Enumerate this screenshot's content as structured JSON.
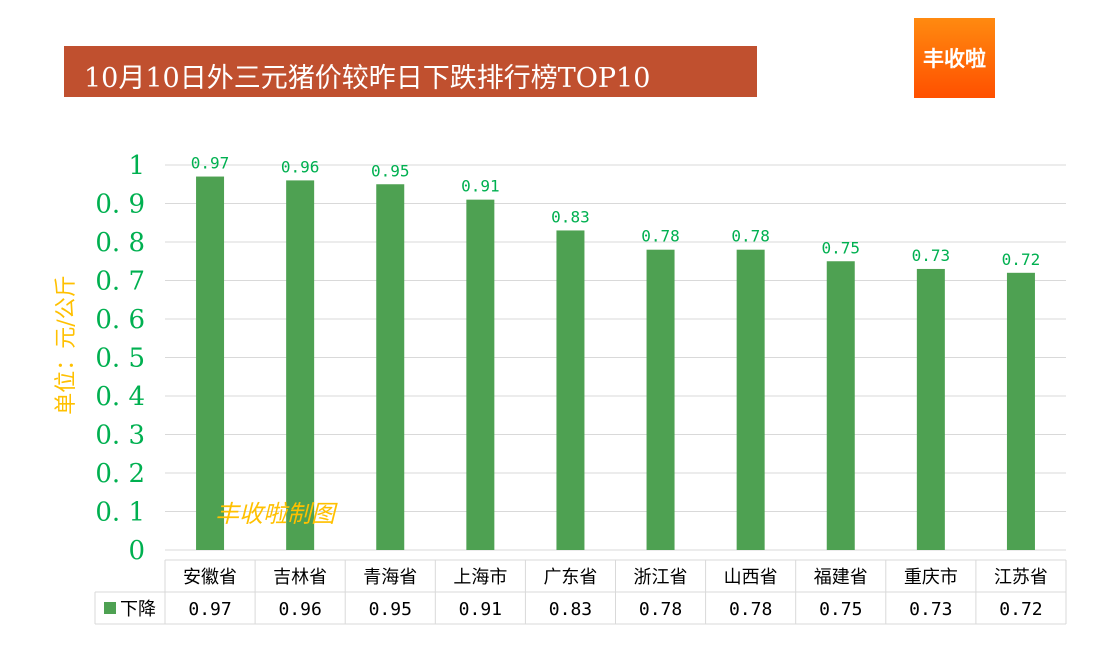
{
  "title": "10月10日外三元猪价较昨日下跌排行榜TOP10",
  "logo": "丰收啦",
  "watermark": "丰收啦制图",
  "colors": {
    "bar": "#4ea152",
    "title_bg": "#c0502f",
    "tick": "#00b050",
    "ylabel": "#ffc000",
    "grid": "#d9d9d9"
  },
  "chart_data": {
    "type": "bar",
    "title": "10月10日外三元猪价较昨日下跌排行榜TOP10",
    "ylabel": "单位：元/公斤",
    "xlabel": "",
    "ylim": [
      0,
      1
    ],
    "yticks": [
      "0",
      "0.1",
      "0.2",
      "0.3",
      "0.4",
      "0.5",
      "0.6",
      "0.7",
      "0.8",
      "0.9",
      "1"
    ],
    "grid": true,
    "legend": "data-table",
    "categories": [
      "安徽省",
      "吉林省",
      "青海省",
      "上海市",
      "广东省",
      "浙江省",
      "山西省",
      "福建省",
      "重庆市",
      "江苏省"
    ],
    "series": [
      {
        "name": "下降",
        "values": [
          0.97,
          0.96,
          0.95,
          0.91,
          0.83,
          0.78,
          0.78,
          0.75,
          0.73,
          0.72
        ]
      }
    ]
  }
}
